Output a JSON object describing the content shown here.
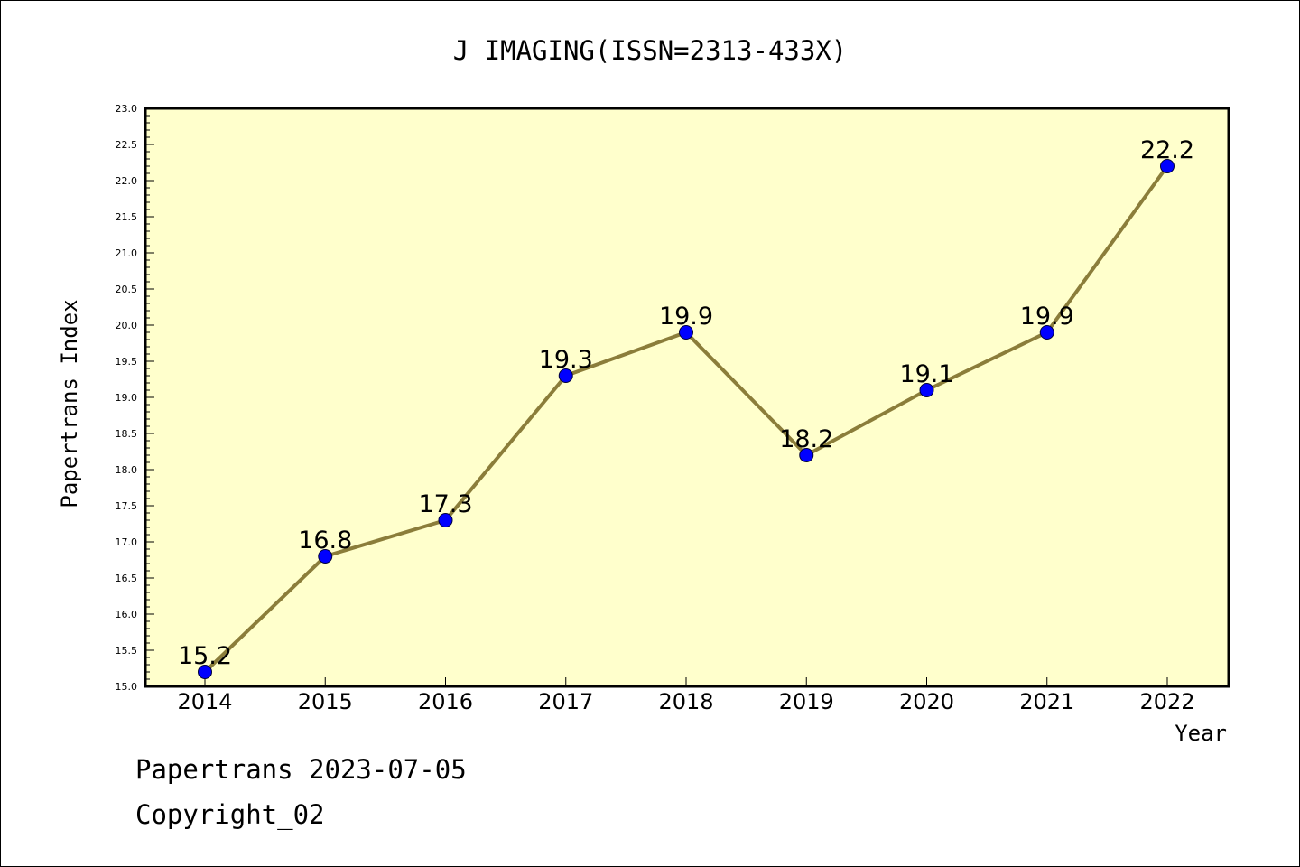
{
  "chart_data": {
    "type": "line",
    "title": "J IMAGING(ISSN=2313-433X)",
    "xlabel": "Year",
    "ylabel": "Papertrans Index",
    "categories": [
      "2014",
      "2015",
      "2016",
      "2017",
      "2018",
      "2019",
      "2020",
      "2021",
      "2022"
    ],
    "values": [
      15.2,
      16.8,
      17.3,
      19.3,
      19.9,
      18.2,
      19.1,
      19.9,
      22.2
    ],
    "data_labels": [
      "15.2",
      "16.8",
      "17.3",
      "19.3",
      "19.9",
      "18.2",
      "19.1",
      "19.9",
      "22.2"
    ],
    "ylim": [
      15.0,
      23.0
    ],
    "y_ticks": [
      "15.0",
      "15.5",
      "16.0",
      "16.5",
      "17.0",
      "17.5",
      "18.0",
      "18.5",
      "19.0",
      "19.5",
      "20.0",
      "20.5",
      "21.0",
      "21.5",
      "22.0",
      "22.5",
      "23.0"
    ],
    "grid": false,
    "legend": "none",
    "colors": {
      "plot_background": "#ffffcc",
      "line": "#8b7d3a",
      "marker": "#0000ff"
    }
  },
  "footer": {
    "line1": "Papertrans 2023-07-05",
    "line2": "Copyright_02"
  }
}
